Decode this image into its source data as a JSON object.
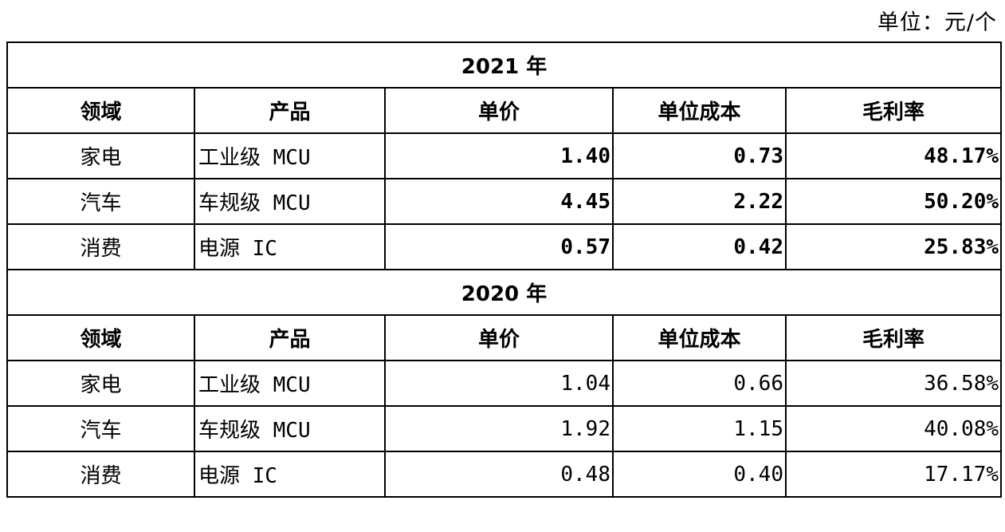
{
  "unit": "单位：元/个",
  "sections": [
    {
      "title": "2021 年",
      "header": [
        "领域",
        "产品",
        "单价",
        "单位成本",
        "毛利率"
      ],
      "rows": [
        [
          "家电",
          "工业级 MCU",
          "1.40",
          "0.73",
          "48.17%"
        ],
        [
          "汽车",
          "车规级 MCU",
          "4.45",
          "2.22",
          "50.20%"
        ],
        [
          "消费",
          "电源 IC",
          "0.57",
          "0.42",
          "25.83%"
        ]
      ]
    },
    {
      "title": "2020 年",
      "header": [
        "领域",
        "产品",
        "单价",
        "单位成本",
        "毛利率"
      ],
      "rows": [
        [
          "家电",
          "工业级 MCU",
          "1.04",
          "0.66",
          "36.58%"
        ],
        [
          "汽车",
          "车规级 MCU",
          "1.92",
          "1.15",
          "40.08%"
        ],
        [
          "消费",
          "电源 IC",
          "0.48",
          "0.40",
          "17.17%"
        ]
      ]
    }
  ]
}
